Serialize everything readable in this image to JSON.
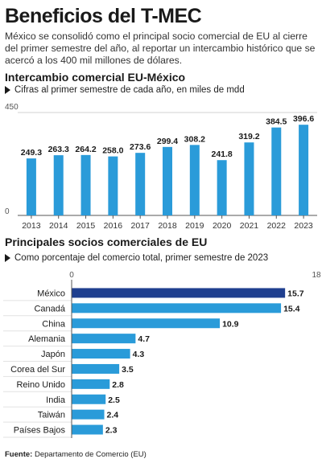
{
  "title": "Beneficios del T-MEC",
  "intro": "México se consolidó como el principal socio comercial de EU al cierre del primer semestre del año, al reportar un intercambio histórico que se acercó a los 400 mil millones de dólares.",
  "colors": {
    "bar_light": "#2a9bd9",
    "bar_dark": "#1f3f8f",
    "text": "#1a1a1a"
  },
  "chart_data": [
    {
      "type": "bar",
      "title": "Intercambio comercial EU-México",
      "subtitle": "Cifras al primer semestre de cada año, en miles de mdd",
      "categories": [
        "2013",
        "2014",
        "2015",
        "2016",
        "2017",
        "2018",
        "2019",
        "2020",
        "2021",
        "2022",
        "2023"
      ],
      "values": [
        249.3,
        263.3,
        264.2,
        258.0,
        273.6,
        299.4,
        308.2,
        241.8,
        319.2,
        384.5,
        396.6
      ],
      "value_labels": [
        "249.3",
        "263.3",
        "264.2",
        "258.0",
        "273.6",
        "299.4",
        "308.2",
        "241.8",
        "319.2",
        "384.5",
        "396.6"
      ],
      "ylim": [
        0,
        450
      ],
      "yticks": [
        "0",
        "450"
      ],
      "grid": true
    },
    {
      "type": "bar",
      "orientation": "horizontal",
      "title": "Principales socios comerciales de EU",
      "subtitle": "Como porcentaje del comercio total, primer semestre de 2023",
      "categories": [
        "México",
        "Canadá",
        "China",
        "Alemania",
        "Japón",
        "Corea del Sur",
        "Reino Unido",
        "India",
        "Taiwán",
        "Países Bajos"
      ],
      "values": [
        15.7,
        15.4,
        10.9,
        4.7,
        4.3,
        3.5,
        2.8,
        2.5,
        2.4,
        2.3
      ],
      "value_labels": [
        "15.7",
        "15.4",
        "10.9",
        "4.7",
        "4.3",
        "3.5",
        "2.8",
        "2.5",
        "2.4",
        "2.3"
      ],
      "highlight": "México",
      "xlim": [
        0,
        18
      ],
      "xticks": [
        "0",
        "18"
      ]
    }
  ],
  "source": {
    "label": "Fuente:",
    "text": "Departamento de Comercio (EU)"
  }
}
